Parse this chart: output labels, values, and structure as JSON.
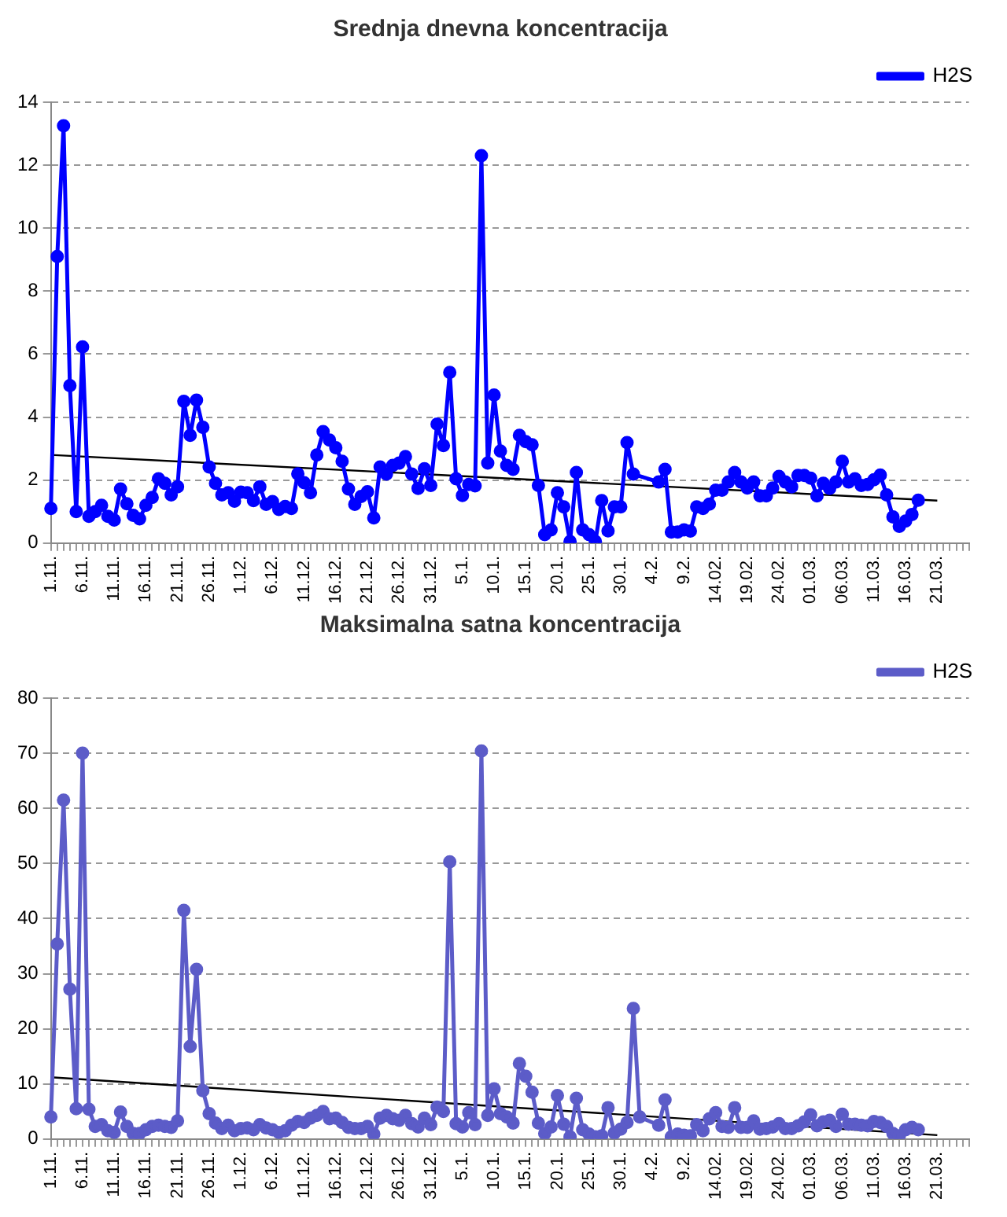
{
  "chart_data": [
    {
      "type": "line",
      "title": "Srednja dnevna koncentracija",
      "categories": [
        "1.11.",
        null,
        null,
        null,
        null,
        "6.11.",
        null,
        null,
        null,
        null,
        "11.11.",
        null,
        null,
        null,
        null,
        "16.11.",
        null,
        null,
        null,
        null,
        "21.11.",
        null,
        null,
        null,
        null,
        "26.11.",
        null,
        null,
        null,
        null,
        "1.12.",
        null,
        null,
        null,
        null,
        "6.12.",
        null,
        null,
        null,
        null,
        "11.12.",
        null,
        null,
        null,
        null,
        "16.12.",
        null,
        null,
        null,
        null,
        "21.12.",
        null,
        null,
        null,
        null,
        "26.12.",
        null,
        null,
        null,
        null,
        "31.12.",
        null,
        null,
        null,
        null,
        "5.1.",
        null,
        null,
        null,
        null,
        "10.1.",
        null,
        null,
        null,
        null,
        "15.1.",
        null,
        null,
        null,
        null,
        "20.1.",
        null,
        null,
        null,
        null,
        "25.1.",
        null,
        null,
        null,
        null,
        "30.1.",
        null,
        null,
        null,
        null,
        "4.2.",
        null,
        null,
        null,
        null,
        "9.2.",
        null,
        null,
        null,
        null,
        "14.02.",
        null,
        null,
        null,
        null,
        "19.02.",
        null,
        null,
        null,
        null,
        "24.02.",
        null,
        null,
        null,
        null,
        "01.03.",
        null,
        null,
        null,
        null,
        "06.03.",
        null,
        null,
        null,
        null,
        "11.03.",
        null,
        null,
        null,
        null,
        "16.03.",
        null,
        null,
        null,
        null,
        "21.03.",
        null,
        null,
        null,
        null,
        null
      ],
      "series": [
        {
          "name": "H2S",
          "color": "#0000ff",
          "values": [
            1.1,
            9.1,
            13.25,
            5.0,
            1.0,
            6.23,
            0.85,
            1.0,
            1.2,
            0.85,
            0.73,
            1.72,
            1.25,
            0.88,
            0.77,
            1.2,
            1.45,
            2.04,
            1.9,
            1.53,
            1.79,
            4.5,
            3.42,
            4.54,
            3.68,
            2.42,
            1.9,
            1.53,
            1.6,
            1.33,
            1.62,
            1.6,
            1.35,
            1.79,
            1.23,
            1.32,
            1.07,
            1.16,
            1.1,
            2.2,
            1.92,
            1.6,
            2.8,
            3.54,
            3.27,
            3.03,
            2.6,
            1.72,
            1.23,
            1.48,
            1.63,
            0.8,
            2.42,
            2.19,
            2.47,
            2.54,
            2.75,
            2.19,
            1.74,
            2.36,
            1.83,
            3.78,
            3.1,
            5.42,
            2.04,
            1.51,
            1.86,
            1.82,
            12.3,
            2.54,
            4.7,
            2.92,
            2.47,
            2.34,
            3.42,
            3.22,
            3.12,
            1.83,
            0.27,
            0.42,
            1.6,
            1.15,
            0.05,
            2.24,
            0.42,
            0.27,
            0.05,
            1.35,
            0.39,
            1.15,
            1.15,
            3.19,
            2.19,
            null,
            null,
            null,
            1.94,
            2.34,
            0.35,
            0.35,
            0.42,
            0.38,
            1.15,
            1.1,
            1.24,
            1.68,
            1.68,
            1.94,
            2.24,
            1.94,
            1.75,
            1.94,
            1.5,
            1.5,
            1.75,
            2.12,
            1.94,
            1.79,
            2.15,
            2.15,
            2.06,
            1.5,
            1.9,
            1.74,
            1.94,
            2.6,
            1.94,
            2.04,
            1.83,
            1.86,
            2.01,
            2.16,
            1.53,
            0.83,
            0.53,
            0.7,
            0.91,
            1.36,
            null,
            null,
            null,
            null,
            null,
            null,
            null,
            null
          ]
        },
        {
          "type": "line",
          "color": "#000000",
          "marker": "none",
          "x": [
            "1.11.",
            "21.03."
          ],
          "values": [
            2.8,
            1.35
          ]
        }
      ],
      "ylim": [
        0,
        14
      ],
      "yticks": [
        0,
        2,
        4,
        6,
        8,
        10,
        12,
        14
      ],
      "grid": "y",
      "legend": "top right",
      "marker": "circle",
      "line_style": "solid"
    },
    {
      "type": "line",
      "title": "Maksimalna satna koncentracija",
      "categories": [
        "1.11.",
        null,
        null,
        null,
        null,
        "6.11.",
        null,
        null,
        null,
        null,
        "11.11.",
        null,
        null,
        null,
        null,
        "16.11.",
        null,
        null,
        null,
        null,
        "21.11.",
        null,
        null,
        null,
        null,
        "26.11.",
        null,
        null,
        null,
        null,
        "1.12.",
        null,
        null,
        null,
        null,
        "6.12.",
        null,
        null,
        null,
        null,
        "11.12.",
        null,
        null,
        null,
        null,
        "16.12.",
        null,
        null,
        null,
        null,
        "21.12.",
        null,
        null,
        null,
        null,
        "26.12.",
        null,
        null,
        null,
        null,
        "31.12.",
        null,
        null,
        null,
        null,
        "5.1.",
        null,
        null,
        null,
        null,
        "10.1.",
        null,
        null,
        null,
        null,
        "15.1.",
        null,
        null,
        null,
        null,
        "20.1.",
        null,
        null,
        null,
        null,
        "25.1.",
        null,
        null,
        null,
        null,
        "30.1.",
        null,
        null,
        null,
        null,
        "4.2.",
        null,
        null,
        null,
        null,
        "9.2.",
        null,
        null,
        null,
        null,
        "14.02.",
        null,
        null,
        null,
        null,
        "19.02.",
        null,
        null,
        null,
        null,
        "24.02.",
        null,
        null,
        null,
        null,
        "01.03.",
        null,
        null,
        null,
        null,
        "06.03.",
        null,
        null,
        null,
        null,
        "11.03.",
        null,
        null,
        null,
        null,
        "16.03.",
        null,
        null,
        null,
        null,
        "21.03.",
        null,
        null,
        null,
        null,
        null
      ],
      "series": [
        {
          "name": "H2S",
          "color": "#5c5cc8",
          "values": [
            4.0,
            35.4,
            61.5,
            27.2,
            5.5,
            70,
            5.4,
            2.3,
            2.6,
            1.5,
            1.2,
            4.9,
            2.3,
            1.0,
            1.0,
            1.7,
            2.3,
            2.5,
            2.3,
            2.1,
            3.3,
            41.5,
            16.8,
            30.8,
            8.8,
            4.6,
            2.9,
            1.9,
            2.5,
            1.5,
            1.9,
            2.0,
            1.7,
            2.6,
            2.0,
            1.7,
            1.2,
            1.5,
            2.5,
            3.2,
            3.0,
            3.8,
            4.3,
            5.0,
            3.7,
            3.8,
            3.0,
            2.1,
            1.9,
            1.9,
            2.3,
            0.9,
            3.8,
            4.3,
            3.7,
            3.4,
            4.3,
            2.8,
            2.2,
            3.8,
            2.6,
            5.8,
            5.0,
            50.3,
            2.8,
            2.2,
            4.8,
            2.6,
            70.4,
            4.3,
            9.1,
            4.6,
            4.0,
            2.9,
            13.7,
            11.4,
            8.5,
            2.9,
            1.0,
            2.2,
            7.9,
            2.7,
            0.4,
            7.4,
            1.7,
            0.9,
            0.4,
            0.6,
            5.7,
            1.1,
            1.8,
            3.0,
            23.7,
            4.0,
            null,
            null,
            2.5,
            7.1,
            0.4,
            0.9,
            0.7,
            0.6,
            2.6,
            1.5,
            3.7,
            4.8,
            2.3,
            2.1,
            5.7,
            2.1,
            2.1,
            3.3,
            1.8,
            1.9,
            2.2,
            2.8,
            1.9,
            1.9,
            2.4,
            3.1,
            4.4,
            2.4,
            3.1,
            3.4,
            2.3,
            4.5,
            2.7,
            2.7,
            2.5,
            2.4,
            3.2,
            3.0,
            2.3,
            1.0,
            0.6,
            1.7,
            2.1,
            1.7,
            null,
            null,
            null,
            null,
            null,
            null,
            null,
            null
          ]
        },
        {
          "type": "line",
          "color": "#000000",
          "marker": "none",
          "x": [
            "1.11.",
            "21.03."
          ],
          "values": [
            11.2,
            0.7
          ]
        }
      ],
      "ylim": [
        0,
        80
      ],
      "yticks": [
        0,
        10,
        20,
        30,
        40,
        50,
        60,
        70,
        80
      ],
      "grid": "y",
      "legend": "top right",
      "marker": "circle",
      "line_style": "solid"
    }
  ]
}
